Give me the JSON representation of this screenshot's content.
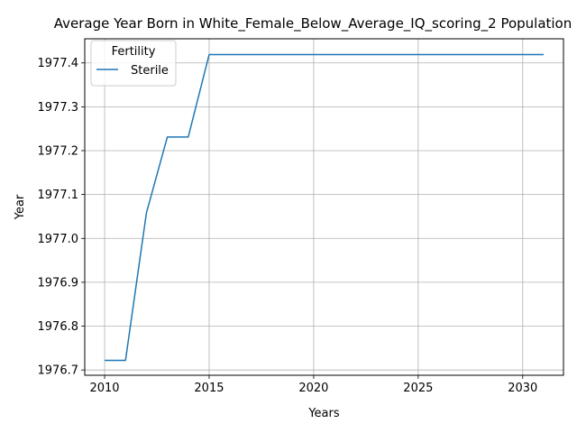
{
  "chart_data": {
    "type": "line",
    "title": "Average Year Born in White_Female_Below_Average_IQ_scoring_2 Population",
    "xlabel": "Years",
    "ylabel": "Year",
    "xlim": [
      2009.05,
      2031.95
    ],
    "ylim": [
      1976.688,
      1977.455
    ],
    "xticks": [
      2010,
      2015,
      2020,
      2025,
      2030
    ],
    "yticks": [
      1976.7,
      1976.8,
      1976.9,
      1977.0,
      1977.1,
      1977.2,
      1977.3,
      1977.4
    ],
    "grid": true,
    "legend": {
      "title": "Fertility",
      "placement": "top-left"
    },
    "series": [
      {
        "name": "Sterile",
        "color": "#1f77b4",
        "x": [
          2010,
          2011,
          2012,
          2013,
          2014,
          2015,
          2016,
          2017,
          2018,
          2019,
          2020,
          2021,
          2022,
          2023,
          2024,
          2025,
          2026,
          2027,
          2028,
          2029,
          2030,
          2031
        ],
        "y": [
          1976.722,
          1976.722,
          1977.058,
          1977.231,
          1977.231,
          1977.419,
          1977.419,
          1977.419,
          1977.419,
          1977.419,
          1977.419,
          1977.419,
          1977.419,
          1977.419,
          1977.419,
          1977.419,
          1977.419,
          1977.419,
          1977.419,
          1977.419,
          1977.419,
          1977.419
        ]
      }
    ]
  }
}
